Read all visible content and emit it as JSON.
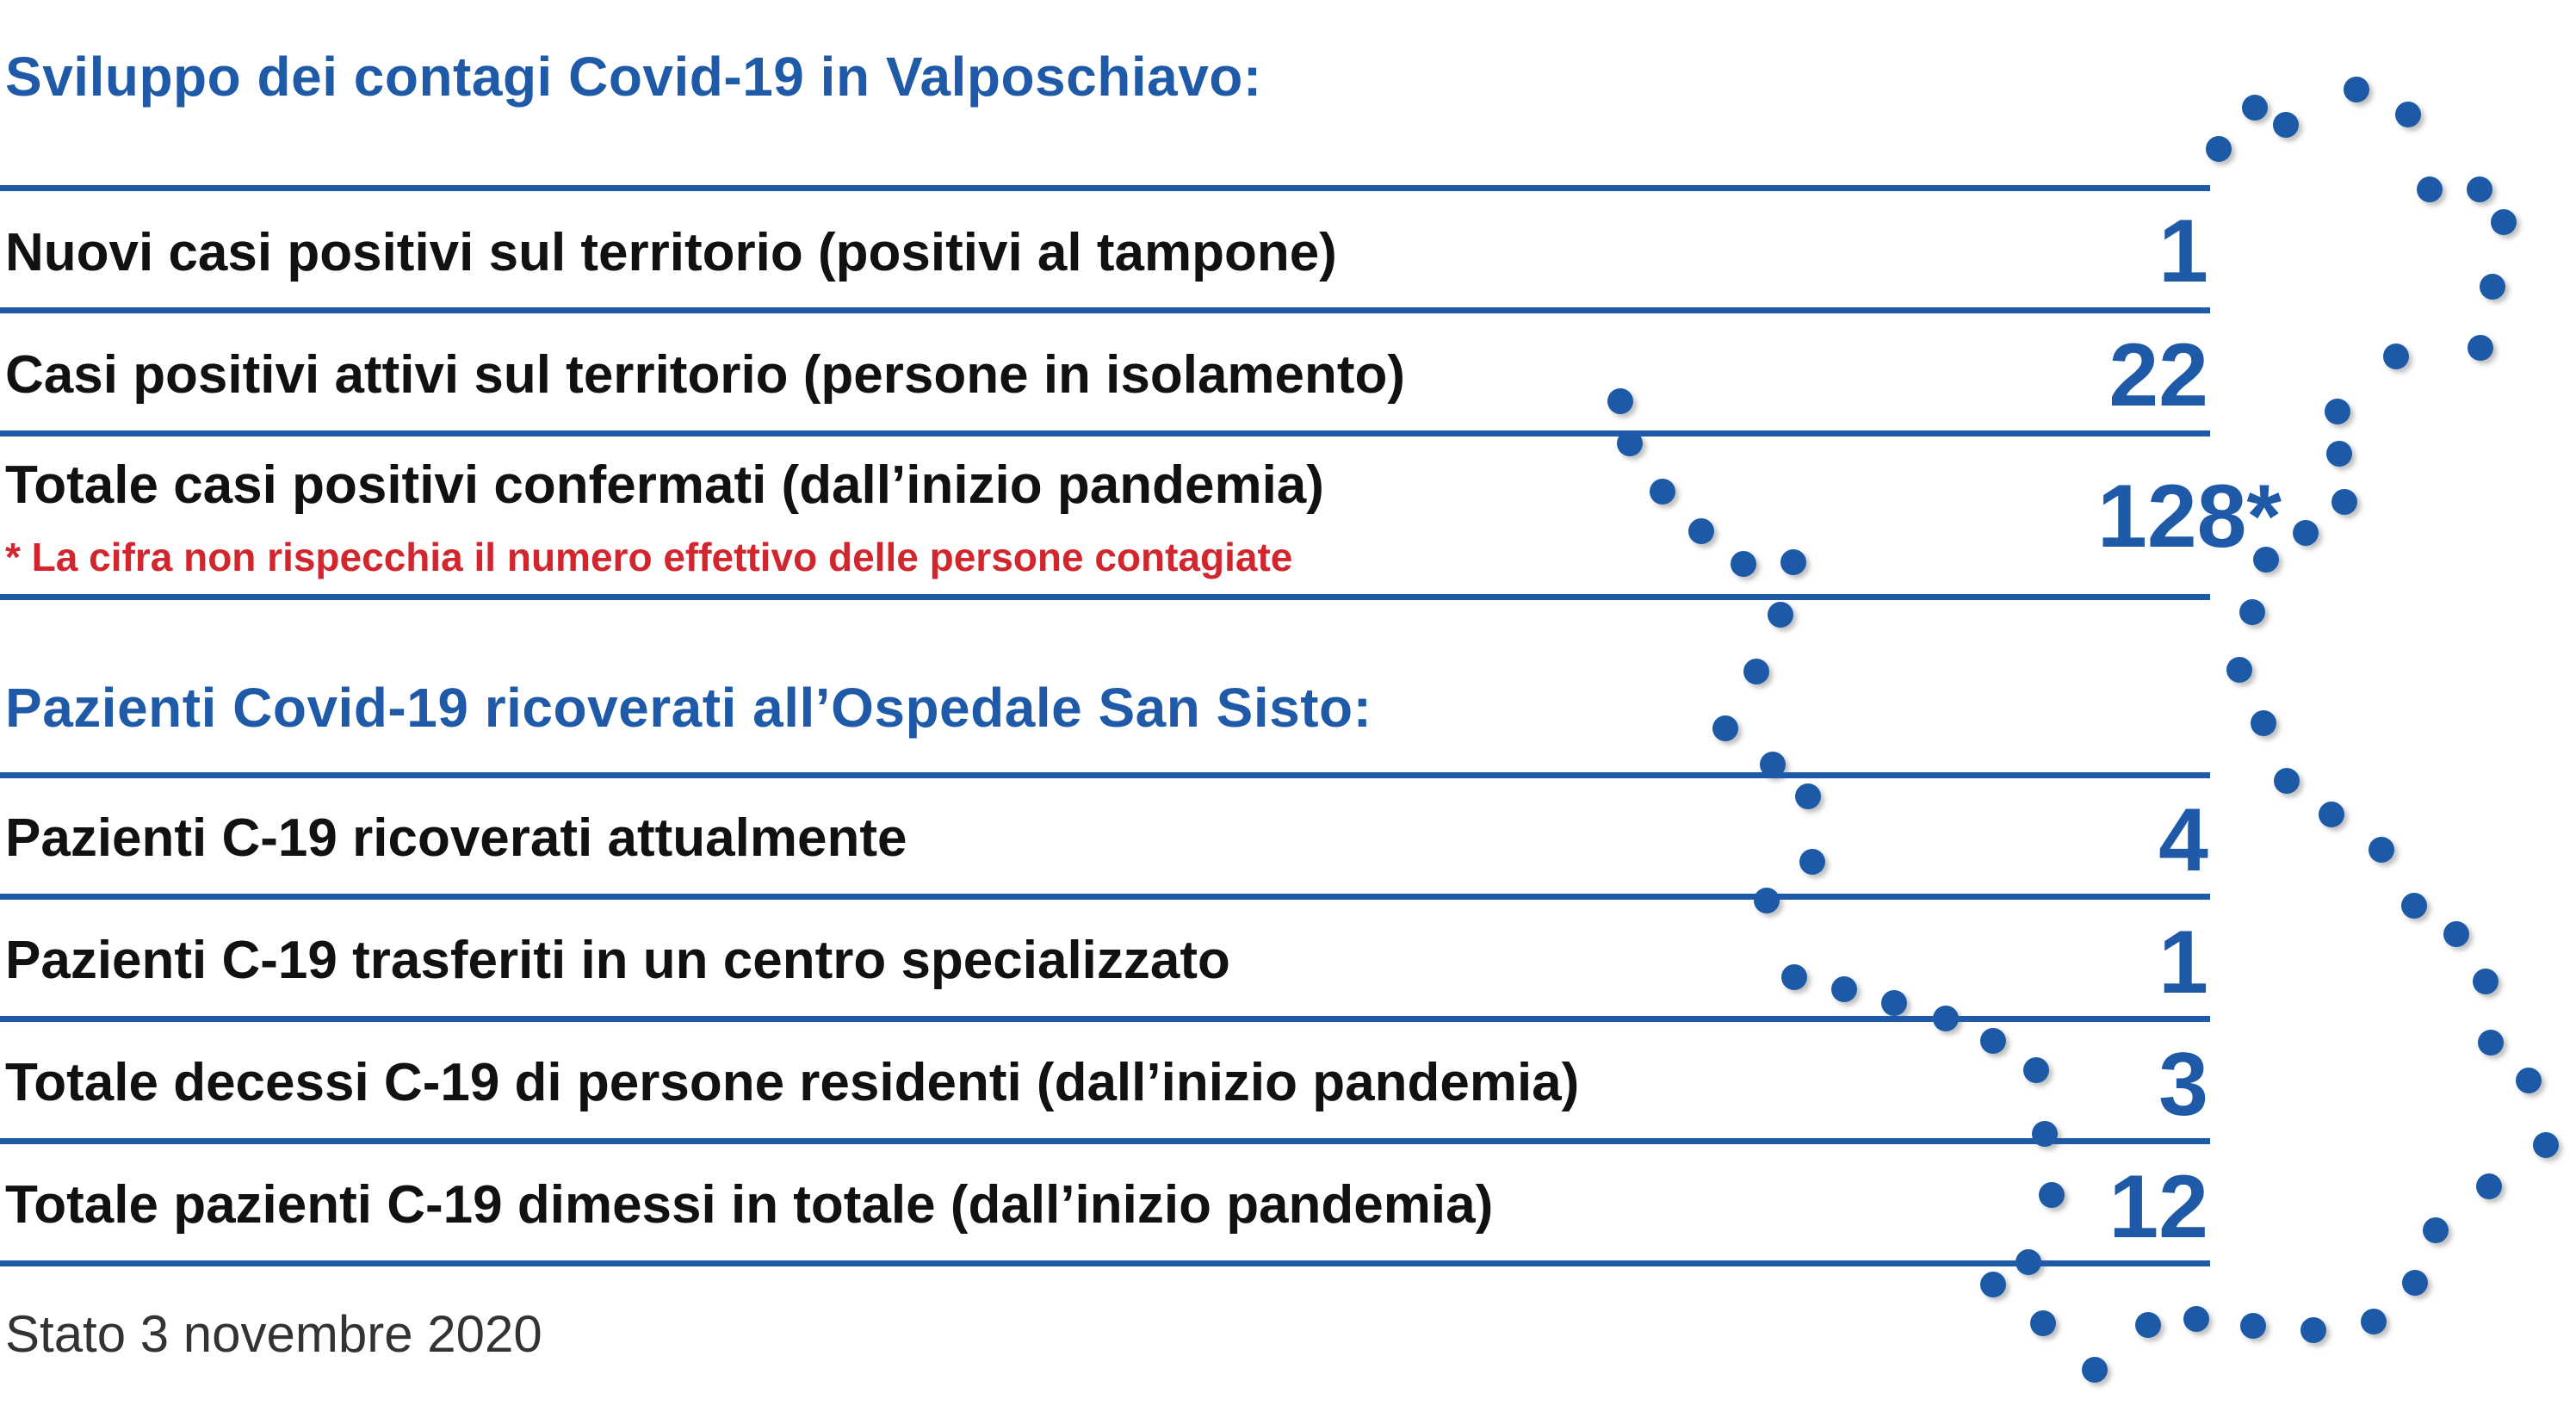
{
  "section1": {
    "title": "Sviluppo dei contagi Covid-19 in Valposchiavo:",
    "rows": [
      {
        "label": "Nuovi casi positivi sul territorio (positivi al tampone)",
        "value": "1"
      },
      {
        "label": "Casi positivi attivi sul territorio (persone in isolamento)",
        "value": "22"
      },
      {
        "label": "Totale casi positivi confermati (dall’inizio pandemia)",
        "value": "128*",
        "note": "* La cifra non rispecchia il numero effettivo delle persone contagiate"
      }
    ]
  },
  "section2": {
    "title": "Pazienti Covid-19 ricoverati all’Ospedale San Sisto:",
    "rows": [
      {
        "label": "Pazienti C-19 ricoverati attualmente",
        "value": "4"
      },
      {
        "label": "Pazienti C-19 trasferiti in un centro specializzato",
        "value": "1"
      },
      {
        "label": "Totale decessi C-19 di persone residenti (dall’inizio pandemia)",
        "value": "3"
      },
      {
        "label": "Totale pazienti C-19 dimessi in totale (dall’inizio pandemia)",
        "value": "12"
      }
    ]
  },
  "footer": "Stato 3 novembre 2020",
  "colors": {
    "accent": "#1f5aa8",
    "text": "#111111",
    "note": "#d1262e"
  },
  "decoration": "dotted-outline-of-valposchiavo-map"
}
